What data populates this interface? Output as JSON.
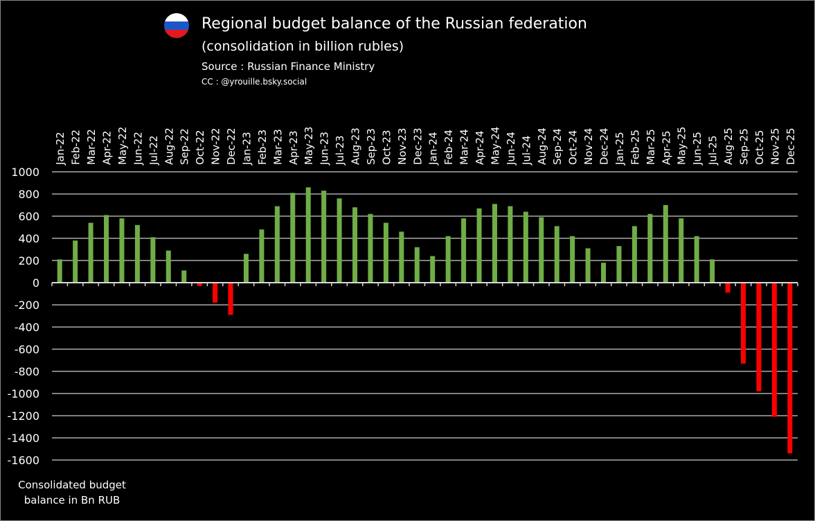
{
  "header": {
    "title": "Regional budget balance of the Russian federation",
    "subtitle": "(consolidation in billion rubles)",
    "source": "Source : Russian Finance Ministry",
    "credit": "CC : @yrouille.bsky.social",
    "flag_colors": [
      "#ffffff",
      "#1c57c9",
      "#e4181f"
    ]
  },
  "chart_data": {
    "type": "bar",
    "title": "Regional budget balance of the Russian federation",
    "ylabel": "Consolidated budget balance in Bn RUB",
    "ylim": [
      -1600,
      1000
    ],
    "yticks": [
      1000,
      800,
      600,
      400,
      200,
      0,
      -200,
      -400,
      -600,
      -800,
      -1000,
      -1200,
      -1400,
      -1600
    ],
    "grid": true,
    "positive_color": "#70ad47",
    "negative_color": "#ff0000",
    "categories": [
      "Jan-22",
      "Feb-22",
      "Mar-22",
      "Apr-22",
      "May-22",
      "Jun-22",
      "Jul-22",
      "Aug-22",
      "Sep-22",
      "Oct-22",
      "Nov-22",
      "Dec-22",
      "Jan-23",
      "Feb-23",
      "Mar-23",
      "Apr-23",
      "May-23",
      "Jun-23",
      "Jul-23",
      "Aug-23",
      "Sep-23",
      "Oct-23",
      "Nov-23",
      "Dec-23",
      "Jan-24",
      "Feb-24",
      "Mar-24",
      "Apr-24",
      "May-24",
      "Jun-24",
      "Jul-24",
      "Aug-24",
      "Sep-24",
      "Oct-24",
      "Nov-24",
      "Dec-24",
      "Jan-25",
      "Feb-25",
      "Mar-25",
      "Apr-25",
      "May-25",
      "Jun-25",
      "Jul-25",
      "Aug-25",
      "Sep-25",
      "Oct-25",
      "Nov-25",
      "Dec-25"
    ],
    "values": [
      210,
      380,
      540,
      610,
      580,
      520,
      410,
      290,
      110,
      -30,
      -180,
      -290,
      260,
      480,
      690,
      810,
      860,
      830,
      760,
      680,
      620,
      540,
      460,
      320,
      240,
      420,
      580,
      670,
      710,
      690,
      640,
      590,
      510,
      420,
      310,
      180,
      330,
      510,
      620,
      700,
      580,
      420,
      210,
      -90,
      -730,
      -980,
      -1210,
      -1540
    ]
  }
}
